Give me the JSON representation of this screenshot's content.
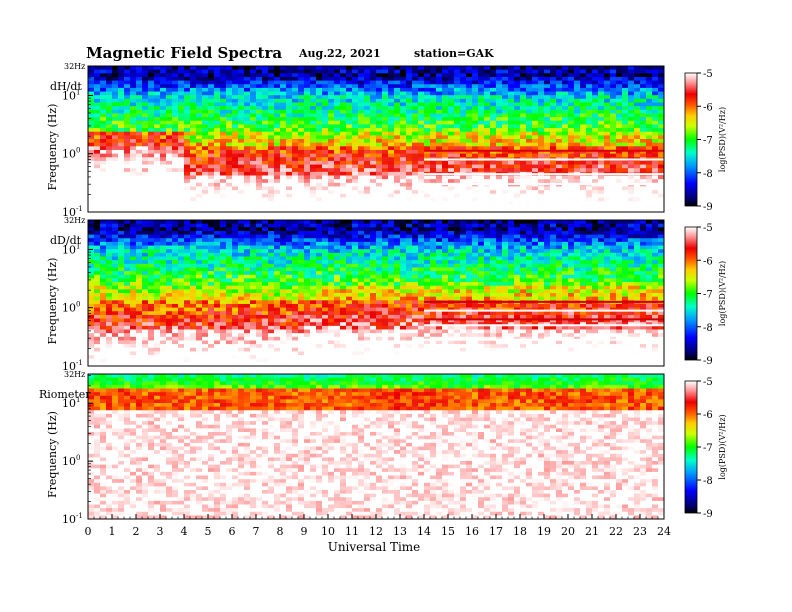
{
  "header": {
    "title": "Magnetic  Field  Spectra",
    "date": "Aug.22, 2021",
    "station": "station=GAK"
  },
  "chart_data": [
    {
      "type": "heatmap",
      "panel_label": "dH/dt",
      "ylabel": "Frequency  (Hz)",
      "top_label": "32Hz",
      "x_range": [
        0,
        24
      ],
      "y_scale": "log",
      "y_range": [
        0.1,
        32
      ],
      "y_ticks": [
        {
          "exp": "1",
          "v": 10
        },
        {
          "exp": "0",
          "v": 1
        },
        {
          "exp": "-1",
          "v": 0.1
        }
      ],
      "colorbar": {
        "range": [
          -9,
          -5
        ],
        "ticks": [
          "-5",
          "-6",
          "-7",
          "-8",
          "-9"
        ],
        "label": "log(PSD)(V²/Hz)"
      }
    },
    {
      "type": "heatmap",
      "panel_label": "dD/dt",
      "ylabel": "Frequency  (Hz)",
      "top_label": "32Hz",
      "x_range": [
        0,
        24
      ],
      "y_scale": "log",
      "y_range": [
        0.1,
        32
      ],
      "y_ticks": [
        {
          "exp": "1",
          "v": 10
        },
        {
          "exp": "0",
          "v": 1
        },
        {
          "exp": "-1",
          "v": 0.1
        }
      ],
      "colorbar": {
        "range": [
          -9,
          -5
        ],
        "ticks": [
          "-5",
          "-6",
          "-7",
          "-8",
          "-9"
        ],
        "label": "log(PSD)(V²/Hz)"
      }
    },
    {
      "type": "heatmap",
      "panel_label": "Riometer",
      "ylabel": "Frequency  (Hz)",
      "top_label": "32Hz",
      "x_range": [
        0,
        24
      ],
      "y_scale": "log",
      "y_range": [
        0.1,
        32
      ],
      "y_ticks": [
        {
          "exp": "1",
          "v": 10
        },
        {
          "exp": "0",
          "v": 1
        },
        {
          "exp": "-1",
          "v": 0.1
        }
      ],
      "colorbar": {
        "range": [
          -9,
          -5
        ],
        "ticks": [
          "-5",
          "-6",
          "-7",
          "-8",
          "-9"
        ],
        "label": "log(PSD)(V²/Hz)"
      }
    }
  ],
  "xaxis": {
    "label": "Universal Time",
    "ticks": [
      "0",
      "1",
      "2",
      "3",
      "4",
      "5",
      "6",
      "7",
      "8",
      "9",
      "10",
      "11",
      "12",
      "13",
      "14",
      "15",
      "16",
      "17",
      "18",
      "19",
      "20",
      "21",
      "22",
      "23",
      "24"
    ]
  }
}
